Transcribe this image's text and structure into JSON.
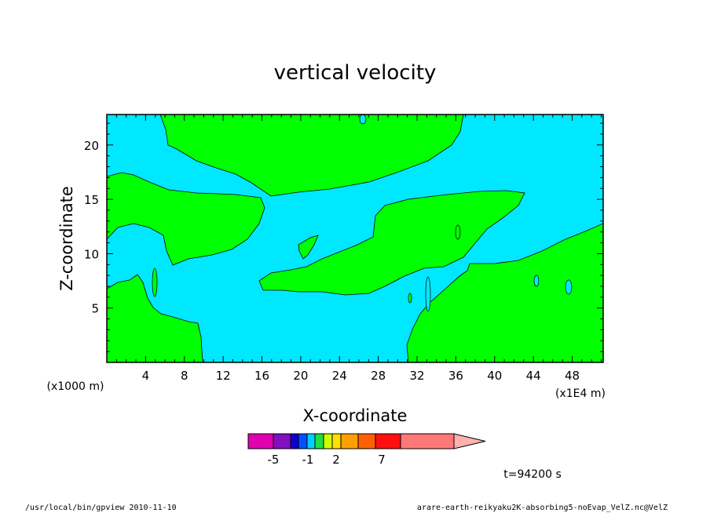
{
  "chart_data": {
    "type": "heatmap",
    "title": "vertical velocity",
    "xlabel": "X-coordinate",
    "ylabel": "Z-coordinate",
    "x_scale_note": "(x1E4 m)",
    "y_scale_note": "(x1000 m)",
    "xlim": [
      0,
      51.2
    ],
    "ylim": [
      0,
      22.8
    ],
    "x_ticks": [
      4,
      8,
      12,
      16,
      20,
      24,
      28,
      32,
      36,
      40,
      44,
      48
    ],
    "y_ticks": [
      5,
      10,
      15,
      20
    ],
    "colorbar": {
      "colors": [
        "#e000b0",
        "#8010c0",
        "#1000d0",
        "#0050ff",
        "#00d0ff",
        "#20e040",
        "#d0ff00",
        "#ffe000",
        "#ffa000",
        "#ff6000",
        "#ff1010",
        "#ff7878",
        "#ffb0b0"
      ],
      "labels": [
        "-5",
        "-1",
        "2",
        "7"
      ]
    },
    "regions": [
      {
        "level": "negative",
        "color": "#00e8ff"
      },
      {
        "level": "positive",
        "color": "#00ff00"
      }
    ],
    "time_label": "t=94200 s"
  },
  "footer": {
    "left": "/usr/local/bin/gpview  2010-11-10",
    "right": "arare-earth-reikyaku2K-absorbing5-noEvap_VelZ.nc@VelZ"
  }
}
